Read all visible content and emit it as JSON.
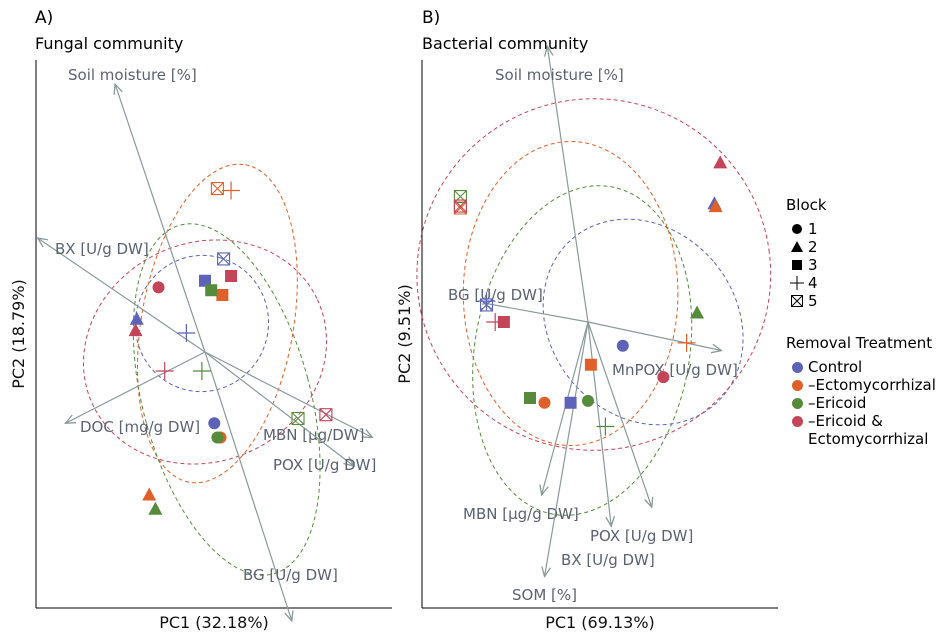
{
  "panels": [
    {
      "letter": "A)",
      "subtitle": "Fungal community"
    },
    {
      "letter": "B)",
      "subtitle": "Bacterial community"
    }
  ],
  "legend": {
    "block_title": "Block",
    "blocks": [
      {
        "label": "1",
        "shape": "circle"
      },
      {
        "label": "2",
        "shape": "triangle"
      },
      {
        "label": "3",
        "shape": "square"
      },
      {
        "label": "4",
        "shape": "plus"
      },
      {
        "label": "5",
        "shape": "boxcross"
      }
    ],
    "treatment_title": "Removal Treatment",
    "treatments": [
      {
        "key": "C",
        "label": "Control",
        "color": "#5c63b8"
      },
      {
        "key": "E",
        "label": "–Ectomycorrhizal",
        "color": "#e0602a"
      },
      {
        "key": "R",
        "label": "–Ericoid",
        "color": "#558b3a"
      },
      {
        "key": "B",
        "label": "–Ericoid &",
        "label2": "Ectomycorrhizal",
        "color": "#c4455a"
      }
    ]
  },
  "chart_data": [
    {
      "type": "scatter",
      "title": "Fungal community",
      "xlabel": "PC1 (32.18%)",
      "ylabel": "PC2 (18.79%)",
      "xlim": [
        -3.2,
        3.2
      ],
      "ylim": [
        -3.2,
        3.2
      ],
      "loadings": [
        {
          "label": "Soil moisture [%]",
          "x": -1.45,
          "y": 2.82
        },
        {
          "label": "BX [U/g DW]",
          "x": -2.7,
          "y": 1.2
        },
        {
          "label": "DOC [mg/g DW]",
          "x": -2.25,
          "y": -0.75
        },
        {
          "label": "MBN [μg/DW]",
          "x": 2.7,
          "y": -0.9
        },
        {
          "label": "POX [U/g DW]",
          "x": 2.4,
          "y": -1.2
        },
        {
          "label": "BG [U/g DW]",
          "x": 1.4,
          "y": -2.83
        }
      ],
      "points": [
        {
          "t": "C",
          "b": 1,
          "x": 0.15,
          "y": -0.75
        },
        {
          "t": "C",
          "b": 2,
          "x": -1.1,
          "y": 0.35
        },
        {
          "t": "C",
          "b": 3,
          "x": 0.0,
          "y": 0.75
        },
        {
          "t": "C",
          "b": 4,
          "x": -0.3,
          "y": 0.2
        },
        {
          "t": "C",
          "b": 5,
          "x": 0.3,
          "y": 0.98
        },
        {
          "t": "E",
          "b": 1,
          "x": 0.25,
          "y": -0.9
        },
        {
          "t": "E",
          "b": 2,
          "x": -0.9,
          "y": -1.5
        },
        {
          "t": "E",
          "b": 3,
          "x": 0.28,
          "y": 0.6
        },
        {
          "t": "E",
          "b": 4,
          "x": 0.42,
          "y": 1.7
        },
        {
          "t": "E",
          "b": 5,
          "x": 0.2,
          "y": 1.72
        },
        {
          "t": "R",
          "b": 1,
          "x": 0.2,
          "y": -0.9
        },
        {
          "t": "R",
          "b": 2,
          "x": -0.8,
          "y": -1.65
        },
        {
          "t": "R",
          "b": 3,
          "x": 0.1,
          "y": 0.65
        },
        {
          "t": "R",
          "b": 4,
          "x": -0.05,
          "y": -0.2
        },
        {
          "t": "R",
          "b": 5,
          "x": 1.5,
          "y": -0.7
        },
        {
          "t": "B",
          "b": 1,
          "x": -0.75,
          "y": 0.68
        },
        {
          "t": "B",
          "b": 2,
          "x": -1.12,
          "y": 0.23
        },
        {
          "t": "B",
          "b": 3,
          "x": 0.42,
          "y": 0.8
        },
        {
          "t": "B",
          "b": 4,
          "x": -0.65,
          "y": -0.2
        },
        {
          "t": "B",
          "b": 5,
          "x": 1.95,
          "y": -0.66
        }
      ],
      "ellipses": [
        {
          "t": "C",
          "cx": -0.05,
          "cy": 0.3,
          "rx": 1.1,
          "ry": 0.7,
          "rot": -75
        },
        {
          "t": "E",
          "cx": 0.2,
          "cy": 0.3,
          "rx": 2.6,
          "ry": 0.8,
          "rot": -80
        },
        {
          "t": "R",
          "cx": 0.35,
          "cy": -0.5,
          "rx": 1.35,
          "ry": 1.9,
          "rot": -15
        },
        {
          "t": "B",
          "cx": 0.0,
          "cy": 0.0,
          "rx": 2.0,
          "ry": 1.15,
          "rot": -25
        }
      ]
    },
    {
      "type": "scatter",
      "title": "Bacterial community",
      "xlabel": "PC1 (69.13%)",
      "ylabel": "PC2 (9.51%)",
      "xlim": [
        -3.2,
        3.2
      ],
      "ylim": [
        -3.2,
        3.2
      ],
      "loadings": [
        {
          "label": "Soil moisture [%]",
          "x": -0.7,
          "y": 2.9
        },
        {
          "label": "BG [U/g DW]",
          "x": -1.8,
          "y": 0.2
        },
        {
          "label": "MnPOX [U/g DW]",
          "x": 2.3,
          "y": -0.3
        },
        {
          "label": "MBN [μg/g DW]",
          "x": -0.8,
          "y": -1.82
        },
        {
          "label": "POX [U/g DW]",
          "x": 1.1,
          "y": -1.95
        },
        {
          "label": "BX [U/g DW]",
          "x": 0.4,
          "y": -2.15
        },
        {
          "label": "SOM [%]",
          "x": -0.75,
          "y": -2.68
        }
      ],
      "points": [
        {
          "t": "C",
          "b": 1,
          "x": 0.6,
          "y": -0.25
        },
        {
          "t": "C",
          "b": 2,
          "x": 2.18,
          "y": 1.25
        },
        {
          "t": "C",
          "b": 3,
          "x": -0.3,
          "y": -0.85
        },
        {
          "t": "C",
          "b": 4,
          "x": -1.75,
          "y": 0.22
        },
        {
          "t": "C",
          "b": 5,
          "x": -1.75,
          "y": 0.18
        },
        {
          "t": "E",
          "b": 1,
          "x": -0.75,
          "y": -0.85
        },
        {
          "t": "E",
          "b": 2,
          "x": 2.2,
          "y": 1.22
        },
        {
          "t": "E",
          "b": 3,
          "x": 0.05,
          "y": -0.45
        },
        {
          "t": "E",
          "b": 4,
          "x": 1.7,
          "y": -0.22
        },
        {
          "t": "E",
          "b": 5,
          "x": -2.2,
          "y": 1.2
        },
        {
          "t": "R",
          "b": 1,
          "x": 0.0,
          "y": -0.83
        },
        {
          "t": "R",
          "b": 2,
          "x": 1.88,
          "y": 0.1
        },
        {
          "t": "R",
          "b": 3,
          "x": -1.0,
          "y": -0.8
        },
        {
          "t": "R",
          "b": 4,
          "x": 0.3,
          "y": -1.1
        },
        {
          "t": "R",
          "b": 5,
          "x": -2.2,
          "y": 1.32
        },
        {
          "t": "B",
          "b": 1,
          "x": 1.3,
          "y": -0.58
        },
        {
          "t": "B",
          "b": 2,
          "x": 2.28,
          "y": 1.68
        },
        {
          "t": "B",
          "b": 3,
          "x": -1.45,
          "y": 0.0
        },
        {
          "t": "B",
          "b": 4,
          "x": -1.6,
          "y": 0.0
        },
        {
          "t": "B",
          "b": 5,
          "x": -2.2,
          "y": 1.22
        }
      ],
      "ellipses": [
        {
          "t": "C",
          "cx": 0.95,
          "cy": 0.0,
          "rx": 1.6,
          "ry": 1.15,
          "rot": -40
        },
        {
          "t": "E",
          "cx": -0.3,
          "cy": 0.3,
          "rx": 1.85,
          "ry": 1.6,
          "rot": 0
        },
        {
          "t": "R",
          "cx": -0.1,
          "cy": -0.3,
          "rx": 1.85,
          "ry": 1.75,
          "rot": 10
        },
        {
          "t": "B",
          "cx": 0.1,
          "cy": 0.5,
          "rx": 3.05,
          "ry": 1.85,
          "rot": -8
        }
      ]
    }
  ]
}
